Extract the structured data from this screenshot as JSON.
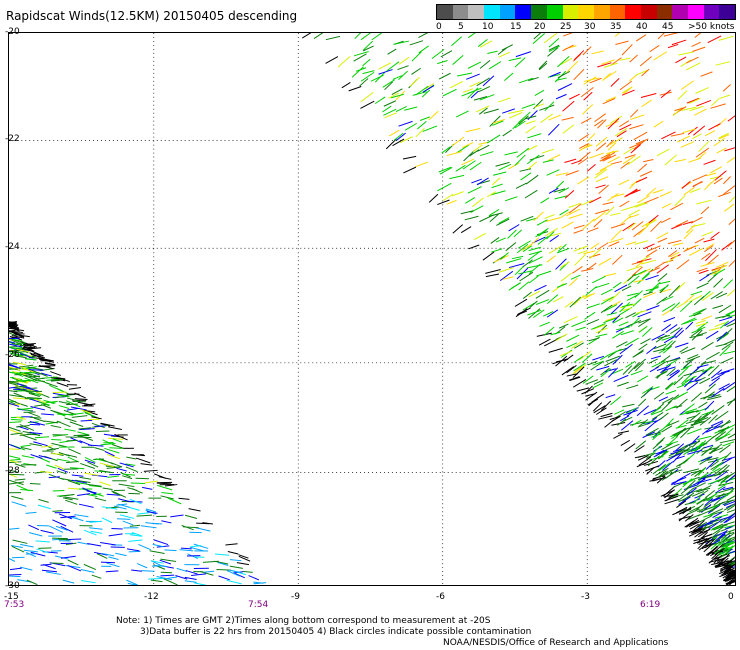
{
  "title": "Rapidscat Winds(12.5KM) 20150405 descending",
  "legend": {
    "colors": [
      "#4d4d4d",
      "#8c8c8c",
      "#bfbfbf",
      "#00e5ff",
      "#00a2ff",
      "#0000ff",
      "#0b7d0b",
      "#00d000",
      "#d8f000",
      "#ffd700",
      "#ffa500",
      "#ff6400",
      "#ff0000",
      "#c80000",
      "#8c2d00",
      "#b000b0",
      "#ff00ff",
      "#7000c0",
      "#3c0096"
    ],
    "labels": [
      "0",
      "5",
      "10",
      "15",
      "20",
      "25",
      "30",
      "35",
      "40",
      "45",
      ">50 knots"
    ]
  },
  "y_axis": [
    "-20",
    "-22",
    "-24",
    "-26",
    "-28",
    "-30"
  ],
  "x_axis": [
    "-15",
    "-12",
    "-9",
    "-6",
    "-3",
    "0"
  ],
  "times": [
    "7:53",
    "7:54",
    "6:19"
  ],
  "notes": [
    "Note: 1) Times are GMT 2)Times along bottom correspond to measurement at -20S",
    "3)Data buffer is 22 hrs from 20150405 4) Black circles indicate possible contamination",
    "NOAA/NESDIS/Office of Research and Applications"
  ]
}
